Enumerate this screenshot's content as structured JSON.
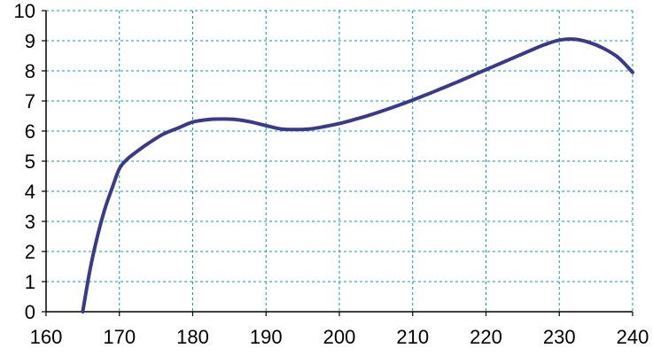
{
  "chart_data": {
    "type": "line",
    "title": "",
    "xlabel": "",
    "ylabel": "",
    "xlim": [
      160,
      240
    ],
    "ylim": [
      0,
      10
    ],
    "x_ticks": [
      "160",
      "170",
      "180",
      "190",
      "200",
      "210",
      "220",
      "230",
      "240"
    ],
    "y_ticks": [
      "0",
      "1",
      "2",
      "3",
      "4",
      "5",
      "6",
      "7",
      "8",
      "9",
      "10"
    ],
    "grid": true,
    "legend": "none",
    "colors": {
      "line": "#3a3a8c",
      "grid": "#00a0b0",
      "axis": "#000000"
    },
    "series": [
      {
        "x": [
          165,
          166,
          167,
          168,
          169,
          170,
          171,
          172,
          174,
          176,
          178,
          180,
          182,
          184,
          186,
          188,
          190,
          192,
          194,
          196,
          198,
          200,
          202,
          204,
          206,
          208,
          210,
          212,
          214,
          216,
          218,
          220,
          222,
          224,
          226,
          228,
          230,
          232,
          234,
          236,
          238,
          240
        ],
        "y": [
          0.0,
          1.4,
          2.5,
          3.4,
          4.1,
          4.75,
          5.05,
          5.25,
          5.6,
          5.9,
          6.1,
          6.3,
          6.38,
          6.4,
          6.38,
          6.3,
          6.18,
          6.07,
          6.05,
          6.07,
          6.15,
          6.25,
          6.38,
          6.52,
          6.68,
          6.85,
          7.03,
          7.22,
          7.42,
          7.62,
          7.83,
          8.04,
          8.25,
          8.46,
          8.67,
          8.87,
          9.02,
          9.05,
          8.95,
          8.75,
          8.45,
          7.95
        ]
      }
    ]
  }
}
